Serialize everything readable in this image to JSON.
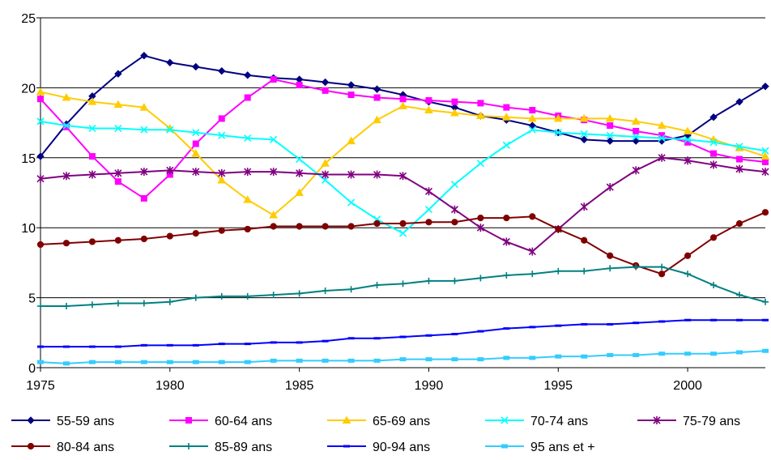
{
  "chart_data": {
    "type": "line",
    "title": "",
    "xlabel": "",
    "ylabel": "",
    "xlim": [
      1975,
      2003
    ],
    "ylim": [
      0,
      25
    ],
    "x_ticks": [
      1975,
      1980,
      1985,
      1990,
      1995,
      2000
    ],
    "y_ticks": [
      0,
      5,
      10,
      15,
      20,
      25
    ],
    "grid": "horizontal",
    "legend_position": "bottom",
    "x": [
      1975,
      1976,
      1977,
      1978,
      1979,
      1980,
      1981,
      1982,
      1983,
      1984,
      1985,
      1986,
      1987,
      1988,
      1989,
      1990,
      1991,
      1992,
      1993,
      1994,
      1995,
      1996,
      1997,
      1998,
      1999,
      2000,
      2001,
      2002,
      2003
    ],
    "series": [
      {
        "name": "55-59 ans",
        "color": "#000080",
        "marker": "diamond",
        "values": [
          15.1,
          17.4,
          19.4,
          21.0,
          22.3,
          21.8,
          21.5,
          21.2,
          20.9,
          20.7,
          20.6,
          20.4,
          20.2,
          19.9,
          19.5,
          19.0,
          18.6,
          18.0,
          17.7,
          17.3,
          16.8,
          16.3,
          16.2,
          16.2,
          16.2,
          16.6,
          17.9,
          19.0,
          20.1
        ]
      },
      {
        "name": "60-64 ans",
        "color": "#ff00ff",
        "marker": "square",
        "values": [
          19.2,
          17.2,
          15.1,
          13.3,
          12.1,
          13.8,
          16.0,
          17.8,
          19.3,
          20.6,
          20.2,
          19.8,
          19.5,
          19.3,
          19.2,
          19.1,
          19.0,
          18.9,
          18.6,
          18.4,
          18.0,
          17.7,
          17.3,
          16.9,
          16.6,
          16.1,
          15.3,
          14.9,
          14.7
        ]
      },
      {
        "name": "65-69 ans",
        "color": "#ffcc00",
        "marker": "triangle",
        "values": [
          19.7,
          19.3,
          19.0,
          18.8,
          18.6,
          17.1,
          15.3,
          13.4,
          12.0,
          10.9,
          12.5,
          14.6,
          16.2,
          17.7,
          18.7,
          18.4,
          18.2,
          18.0,
          17.9,
          17.8,
          17.8,
          17.8,
          17.8,
          17.6,
          17.3,
          16.9,
          16.3,
          15.7,
          15.1
        ]
      },
      {
        "name": "70-74 ans",
        "color": "#00ffff",
        "marker": "x",
        "values": [
          17.6,
          17.3,
          17.1,
          17.1,
          17.0,
          17.0,
          16.8,
          16.6,
          16.4,
          16.3,
          14.9,
          13.4,
          11.8,
          10.6,
          9.6,
          11.3,
          13.1,
          14.6,
          15.9,
          17.0,
          16.8,
          16.7,
          16.6,
          16.5,
          16.4,
          16.3,
          16.1,
          15.8,
          15.5
        ]
      },
      {
        "name": "75-79 ans",
        "color": "#800080",
        "marker": "asterisk",
        "values": [
          13.5,
          13.7,
          13.8,
          13.9,
          14.0,
          14.1,
          14.0,
          13.9,
          14.0,
          14.0,
          13.9,
          13.8,
          13.8,
          13.8,
          13.7,
          12.6,
          11.3,
          10.0,
          9.0,
          8.3,
          9.9,
          11.5,
          12.9,
          14.1,
          15.0,
          14.8,
          14.5,
          14.2,
          14.0
        ]
      },
      {
        "name": "80-84 ans",
        "color": "#800000",
        "marker": "circle",
        "values": [
          8.8,
          8.9,
          9.0,
          9.1,
          9.2,
          9.4,
          9.6,
          9.8,
          9.9,
          10.1,
          10.1,
          10.1,
          10.1,
          10.3,
          10.3,
          10.4,
          10.4,
          10.7,
          10.7,
          10.8,
          9.9,
          9.1,
          8.0,
          7.3,
          6.7,
          8.0,
          9.3,
          10.3,
          11.1
        ]
      },
      {
        "name": "85-89 ans",
        "color": "#008080",
        "marker": "plus",
        "values": [
          4.4,
          4.4,
          4.5,
          4.6,
          4.6,
          4.7,
          5.0,
          5.1,
          5.1,
          5.2,
          5.3,
          5.5,
          5.6,
          5.9,
          6.0,
          6.2,
          6.2,
          6.4,
          6.6,
          6.7,
          6.9,
          6.9,
          7.1,
          7.2,
          7.2,
          6.7,
          5.9,
          5.2,
          4.7
        ]
      },
      {
        "name": "90-94 ans",
        "color": "#0000ff",
        "marker": "dash",
        "values": [
          1.5,
          1.5,
          1.5,
          1.5,
          1.6,
          1.6,
          1.6,
          1.7,
          1.7,
          1.8,
          1.8,
          1.9,
          2.1,
          2.1,
          2.2,
          2.3,
          2.4,
          2.6,
          2.8,
          2.9,
          3.0,
          3.1,
          3.1,
          3.2,
          3.3,
          3.4,
          3.4,
          3.4,
          3.4
        ]
      },
      {
        "name": "95 ans et +",
        "color": "#33ccff",
        "marker": "bar",
        "values": [
          0.4,
          0.3,
          0.4,
          0.4,
          0.4,
          0.4,
          0.4,
          0.4,
          0.4,
          0.5,
          0.5,
          0.5,
          0.5,
          0.5,
          0.6,
          0.6,
          0.6,
          0.6,
          0.7,
          0.7,
          0.8,
          0.8,
          0.9,
          0.9,
          1.0,
          1.0,
          1.0,
          1.1,
          1.2
        ]
      }
    ]
  }
}
